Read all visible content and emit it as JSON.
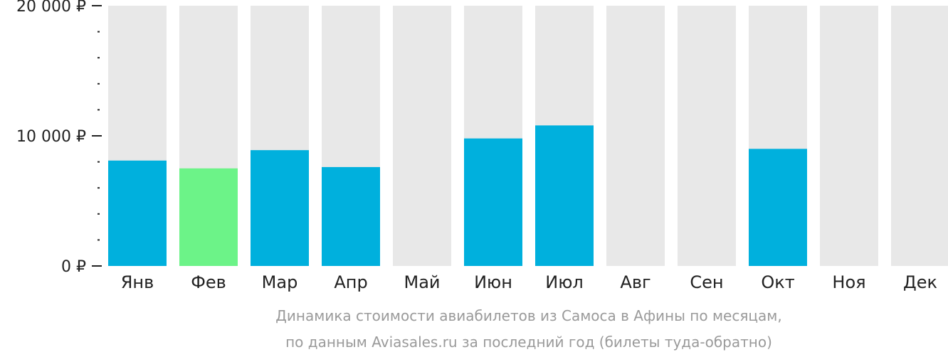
{
  "chart_data": {
    "type": "bar",
    "categories": [
      "Янв",
      "Фев",
      "Мар",
      "Апр",
      "Май",
      "Июн",
      "Июл",
      "Авг",
      "Сен",
      "Окт",
      "Ноя",
      "Дек"
    ],
    "values": [
      8100,
      7500,
      8900,
      7600,
      null,
      9800,
      10800,
      null,
      null,
      9000,
      null,
      null
    ],
    "highlight_index": 1,
    "ylim": [
      0,
      20000
    ],
    "y_ticks": [
      {
        "value": 0,
        "label": "0 ₽"
      },
      {
        "value": 10000,
        "label": "10 000 ₽"
      },
      {
        "value": 20000,
        "label": "20 000 ₽"
      }
    ],
    "minor_tick_step": 2000,
    "caption_lines": [
      "Динамика стоимости авиабилетов из Самоса в Афины по месяцам,",
      "по данным Aviasales.ru за последний год (билеты туда-обратно)"
    ],
    "colors": {
      "bar": "#00b0dd",
      "highlight": "#6cf388",
      "background_column": "#e8e8e8",
      "axis": "#222222",
      "caption": "#9a9a9a"
    },
    "grid": false,
    "legend": "none"
  }
}
